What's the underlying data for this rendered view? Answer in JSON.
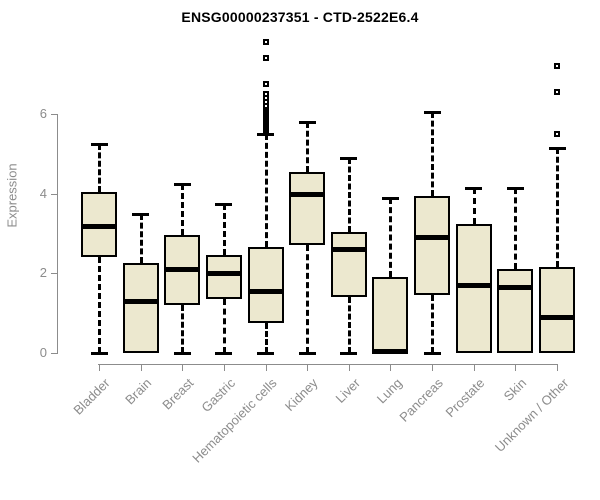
{
  "chart_data": {
    "type": "boxplot",
    "title": "ENSG00000237351 - CTD-2522E6.4",
    "xlabel": "",
    "ylabel": "Expression",
    "ylim": [
      0,
      7.9
    ],
    "yticks": [
      0,
      2,
      4,
      6
    ],
    "grid": false,
    "legend": null,
    "categories": [
      "Bladder",
      "Brain",
      "Breast",
      "Gastric",
      "Hematopoietic cells",
      "Kidney",
      "Liver",
      "Lung",
      "Pancreas",
      "Prostate",
      "Skin",
      "Unknown / Other"
    ],
    "series": [
      {
        "category": "Bladder",
        "whisker_low": 0,
        "q1": 2.4,
        "median": 3.2,
        "q3": 4.05,
        "whisker_high": 5.25,
        "outliers": []
      },
      {
        "category": "Brain",
        "whisker_low": 0,
        "q1": 0,
        "median": 1.3,
        "q3": 2.25,
        "whisker_high": 3.5,
        "outliers": []
      },
      {
        "category": "Breast",
        "whisker_low": 0,
        "q1": 1.2,
        "median": 2.1,
        "q3": 2.95,
        "whisker_high": 4.25,
        "outliers": []
      },
      {
        "category": "Gastric",
        "whisker_low": 0,
        "q1": 1.35,
        "median": 2.0,
        "q3": 2.45,
        "whisker_high": 3.75,
        "outliers": []
      },
      {
        "category": "Hematopoietic cells",
        "whisker_low": 0,
        "q1": 0.75,
        "median": 1.55,
        "q3": 2.65,
        "whisker_high": 5.5,
        "outliers": [
          5.55,
          5.6,
          5.65,
          5.7,
          5.75,
          5.8,
          5.85,
          5.9,
          5.95,
          6.0,
          6.05,
          6.1,
          6.15,
          6.2,
          6.3,
          6.4,
          6.5,
          6.75,
          7.4,
          7.8
        ]
      },
      {
        "category": "Kidney",
        "whisker_low": 0,
        "q1": 2.7,
        "median": 4.0,
        "q3": 4.55,
        "whisker_high": 5.8,
        "outliers": []
      },
      {
        "category": "Liver",
        "whisker_low": 0,
        "q1": 1.4,
        "median": 2.6,
        "q3": 3.05,
        "whisker_high": 4.9,
        "outliers": []
      },
      {
        "category": "Lung",
        "whisker_low": 0,
        "q1": 0,
        "median": 0.05,
        "q3": 1.9,
        "whisker_high": 3.9,
        "outliers": []
      },
      {
        "category": "Pancreas",
        "whisker_low": 0,
        "q1": 1.45,
        "median": 2.9,
        "q3": 3.95,
        "whisker_high": 6.05,
        "outliers": []
      },
      {
        "category": "Prostate",
        "whisker_low": 0,
        "q1": 0,
        "median": 1.7,
        "q3": 3.25,
        "whisker_high": 4.15,
        "outliers": []
      },
      {
        "category": "Skin",
        "whisker_low": 0,
        "q1": 0,
        "median": 1.65,
        "q3": 2.1,
        "whisker_high": 4.15,
        "outliers": []
      },
      {
        "category": "Unknown / Other",
        "whisker_low": 0,
        "q1": 0,
        "median": 0.9,
        "q3": 2.15,
        "whisker_high": 5.15,
        "outliers": [
          5.5,
          6.55,
          7.2
        ]
      }
    ]
  },
  "colors": {
    "background": "#ffffff",
    "box_fill": "#ece8cf",
    "box_border": "#000000",
    "median": "#000000",
    "whisker": "#000000",
    "axis": "#8c8c8c",
    "tick_label": "#8c8c8c",
    "title": "#000000"
  }
}
